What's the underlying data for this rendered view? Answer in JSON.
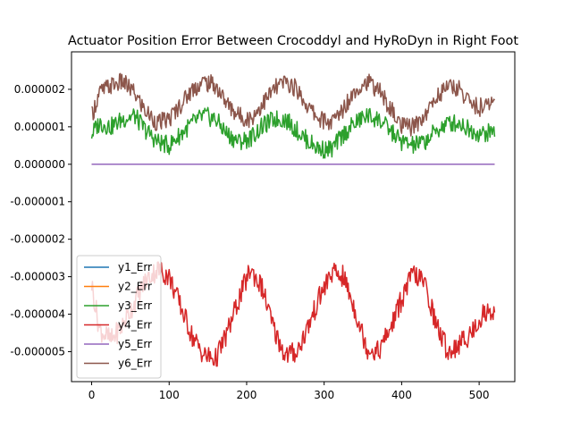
{
  "chart_data": {
    "type": "line",
    "title": "Actuator Position Error Between Crocoddyl and HyRoDyn in Right Foot",
    "xlabel": "",
    "ylabel": "",
    "xlim": [
      -26,
      546
    ],
    "ylim": [
      -5.8e-06,
      3e-06
    ],
    "x_ticks": [
      0,
      100,
      200,
      300,
      400,
      500
    ],
    "x_tick_labels": [
      "0",
      "100",
      "200",
      "300",
      "400",
      "500"
    ],
    "y_ticks": [
      2e-06,
      1e-06,
      0.0,
      -1e-06,
      -2e-06,
      -3e-06,
      -4e-06,
      -5e-06
    ],
    "y_tick_labels": [
      "0.000002",
      "0.000001",
      "0.000000",
      "-0.000001",
      "-0.000002",
      "-0.000003",
      "-0.000004",
      "-0.000005"
    ],
    "grid": false,
    "legend_position": "lower-left",
    "x_range": [
      0,
      520
    ],
    "series": [
      {
        "name": "y1_Err",
        "color": "#1f77b4",
        "x": [
          0,
          100,
          200,
          300,
          400,
          520
        ],
        "values": [
          0,
          0,
          0,
          0,
          0,
          0
        ]
      },
      {
        "name": "y2_Err",
        "color": "#ff7f0e",
        "x": [
          0,
          100,
          200,
          300,
          400,
          520
        ],
        "values": [
          0,
          0,
          0,
          0,
          0,
          0
        ]
      },
      {
        "name": "y3_Err",
        "color": "#2ca02c",
        "x": [
          0,
          10,
          25,
          40,
          55,
          70,
          85,
          100,
          115,
          130,
          145,
          160,
          175,
          190,
          205,
          220,
          235,
          250,
          265,
          280,
          295,
          310,
          325,
          340,
          355,
          370,
          385,
          400,
          415,
          430,
          445,
          460,
          475,
          490,
          505,
          520
        ],
        "values": [
          8e-07,
          1.1e-06,
          1e-06,
          1.2e-06,
          1.3e-06,
          9e-07,
          6e-07,
          5e-07,
          8e-07,
          1.1e-06,
          1.3e-06,
          1.2e-06,
          8e-07,
          6e-07,
          7e-07,
          1e-06,
          1.2e-06,
          1.2e-06,
          9e-07,
          6e-07,
          4e-07,
          4e-07,
          8e-07,
          1.1e-06,
          1.3e-06,
          1.2e-06,
          9e-07,
          6e-07,
          5e-07,
          6e-07,
          9e-07,
          1.1e-06,
          1.1e-06,
          9e-07,
          8e-07,
          9e-07
        ]
      },
      {
        "name": "y4_Err",
        "color": "#d62728",
        "x": [
          0,
          10,
          25,
          40,
          55,
          70,
          85,
          100,
          115,
          130,
          145,
          160,
          175,
          190,
          205,
          220,
          235,
          250,
          265,
          280,
          295,
          310,
          325,
          340,
          355,
          370,
          385,
          400,
          415,
          430,
          445,
          460,
          475,
          490,
          505,
          520
        ],
        "values": [
          -3.2e-06,
          -4.4e-06,
          -4.7e-06,
          -4.3e-06,
          -3.7e-06,
          -3.1e-06,
          -2.8e-06,
          -3e-06,
          -3.8e-06,
          -4.6e-06,
          -5.1e-06,
          -5.2e-06,
          -4.5e-06,
          -3.6e-06,
          -2.8e-06,
          -3.3e-06,
          -4.4e-06,
          -5.1e-06,
          -5e-06,
          -4.3e-06,
          -3.5e-06,
          -2.9e-06,
          -3e-06,
          -3.9e-06,
          -4.9e-06,
          -5e-06,
          -4.4e-06,
          -3.6e-06,
          -2.9e-06,
          -3.2e-06,
          -4.3e-06,
          -5e-06,
          -4.8e-06,
          -4.5e-06,
          -4e-06,
          -3.9e-06
        ]
      },
      {
        "name": "y5_Err",
        "color": "#9467bd",
        "x": [
          0,
          100,
          200,
          300,
          400,
          520
        ],
        "values": [
          0,
          0,
          0,
          0,
          0,
          0
        ]
      },
      {
        "name": "y6_Err",
        "color": "#8c564b",
        "x": [
          0,
          10,
          25,
          40,
          55,
          70,
          85,
          100,
          115,
          130,
          145,
          160,
          175,
          190,
          205,
          220,
          235,
          250,
          265,
          280,
          295,
          310,
          325,
          340,
          355,
          370,
          385,
          400,
          415,
          430,
          445,
          460,
          475,
          490,
          505,
          520
        ],
        "values": [
          1.3e-06,
          1.9e-06,
          2.1e-06,
          2.2e-06,
          1.9e-06,
          1.4e-06,
          1.1e-06,
          1.2e-06,
          1.6e-06,
          2e-06,
          2.2e-06,
          2.1e-06,
          1.6e-06,
          1.3e-06,
          1.2e-06,
          1.6e-06,
          2e-06,
          2.2e-06,
          2e-06,
          1.5e-06,
          1.2e-06,
          1.1e-06,
          1.5e-06,
          2e-06,
          2.2e-06,
          2e-06,
          1.5e-06,
          1e-06,
          1e-06,
          1.3e-06,
          1.8e-06,
          2.1e-06,
          2e-06,
          1.6e-06,
          1.5e-06,
          1.7e-06
        ]
      }
    ]
  }
}
